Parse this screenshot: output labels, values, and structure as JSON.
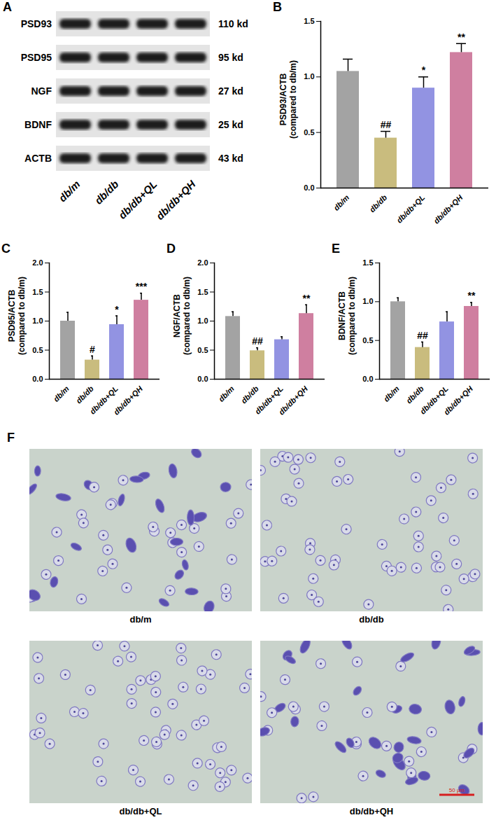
{
  "panels": {
    "A": {
      "letter": "A",
      "type": "western_blot",
      "proteins": [
        {
          "name": "PSD93",
          "size": "110 kd"
        },
        {
          "name": "PSD95",
          "size": "95 kd"
        },
        {
          "name": "NGF",
          "size": "27 kd"
        },
        {
          "name": "BDNF",
          "size": "25 kd"
        },
        {
          "name": "ACTB",
          "size": "43 kd"
        }
      ],
      "groups": [
        "db/m",
        "db/db",
        "db/db+QL",
        "db/db+QH"
      ]
    },
    "F": {
      "letter": "F",
      "type": "micrograph",
      "images": [
        "db/m",
        "db/db",
        "db/db+QL",
        "db/db+QH"
      ],
      "scale_bar": "50 μm"
    }
  },
  "chart_data": [
    {
      "type": "bar",
      "title": "B",
      "ylabel": [
        "PSD93/ACTB",
        "(compared to db/m)"
      ],
      "categories": [
        "db/m",
        "db/db",
        "db/db+QL",
        "db/db+QH"
      ],
      "values": [
        1.05,
        0.45,
        0.9,
        1.22
      ],
      "errors": [
        0.11,
        0.06,
        0.1,
        0.08
      ],
      "annotations": [
        null,
        "##",
        "*",
        "**"
      ],
      "colors": [
        "#a3a3a3",
        "#c9bc7e",
        "#9293e2",
        "#cf7fa0"
      ],
      "ylim": [
        0,
        1.5
      ],
      "yticks": [
        {
          "value": 0,
          "label": "0.0"
        },
        {
          "value": 0.5,
          "label": "0.5"
        },
        {
          "value": 1,
          "label": "1.0"
        },
        {
          "value": 1.5,
          "label": "1.5"
        }
      ]
    },
    {
      "type": "bar",
      "title": "C",
      "ylabel": [
        "PSD95/ACTB",
        "(compared to db/m)"
      ],
      "categories": [
        "db/m",
        "db/db",
        "db/db+QL",
        "db/db+QH"
      ],
      "values": [
        1.0,
        0.33,
        0.94,
        1.36
      ],
      "errors": [
        0.15,
        0.07,
        0.15,
        0.12
      ],
      "annotations": [
        null,
        "#",
        "*",
        "***"
      ],
      "colors": [
        "#a3a3a3",
        "#c9bc7e",
        "#9293e2",
        "#cf7fa0"
      ],
      "ylim": [
        0,
        2
      ],
      "yticks": [
        {
          "value": 0,
          "label": "0.0"
        },
        {
          "value": 0.5,
          "label": "0.5"
        },
        {
          "value": 1,
          "label": "1.0"
        },
        {
          "value": 1.5,
          "label": "1.5"
        },
        {
          "value": 2,
          "label": "2.0"
        }
      ]
    },
    {
      "type": "bar",
      "title": "D",
      "ylabel": [
        "NGF/ACTB",
        "(compared to db/m)"
      ],
      "categories": [
        "db/m",
        "db/db",
        "db/db+QL",
        "db/db+QH"
      ],
      "values": [
        1.08,
        0.49,
        0.68,
        1.13
      ],
      "errors": [
        0.08,
        0.05,
        0.05,
        0.15
      ],
      "annotations": [
        null,
        "##",
        null,
        "**"
      ],
      "colors": [
        "#a3a3a3",
        "#c9bc7e",
        "#9293e2",
        "#cf7fa0"
      ],
      "ylim": [
        0,
        2
      ],
      "yticks": [
        {
          "value": 0,
          "label": "0.0"
        },
        {
          "value": 0.5,
          "label": "0.5"
        },
        {
          "value": 1,
          "label": "1.0"
        },
        {
          "value": 1.5,
          "label": "1.5"
        },
        {
          "value": 2,
          "label": "2.0"
        }
      ]
    },
    {
      "type": "bar",
      "title": "E",
      "ylabel": [
        "BDNF/ACTB",
        "(compared to db/m)"
      ],
      "categories": [
        "db/m",
        "db/db",
        "db/db+QL",
        "db/db+QH"
      ],
      "values": [
        1.0,
        0.41,
        0.74,
        0.94
      ],
      "errors": [
        0.05,
        0.07,
        0.13,
        0.05
      ],
      "annotations": [
        null,
        "##",
        null,
        "**"
      ],
      "colors": [
        "#a3a3a3",
        "#c9bc7e",
        "#9293e2",
        "#cf7fa0"
      ],
      "ylim": [
        0,
        1.5
      ],
      "yticks": [
        {
          "value": 0,
          "label": "0.0"
        },
        {
          "value": 0.5,
          "label": "0.5"
        },
        {
          "value": 1,
          "label": "1.0"
        },
        {
          "value": 1.5,
          "label": "1.5"
        }
      ]
    }
  ]
}
